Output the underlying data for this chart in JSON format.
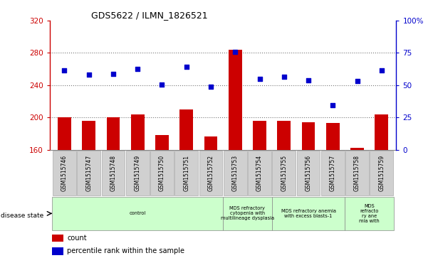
{
  "title": "GDS5622 / ILMN_1826521",
  "samples": [
    "GSM1515746",
    "GSM1515747",
    "GSM1515748",
    "GSM1515749",
    "GSM1515750",
    "GSM1515751",
    "GSM1515752",
    "GSM1515753",
    "GSM1515754",
    "GSM1515755",
    "GSM1515756",
    "GSM1515757",
    "GSM1515758",
    "GSM1515759"
  ],
  "counts": [
    200,
    196,
    200,
    204,
    178,
    210,
    176,
    284,
    196,
    196,
    194,
    193,
    162,
    204
  ],
  "percentile_values": [
    258,
    253,
    254,
    260,
    241,
    263,
    238,
    281,
    248,
    250,
    246,
    215,
    245,
    258
  ],
  "bar_color": "#cc0000",
  "dot_color": "#0000cc",
  "left_ylim": [
    160,
    320
  ],
  "left_yticks": [
    160,
    200,
    240,
    280,
    320
  ],
  "right_ylim": [
    0,
    100
  ],
  "right_yticks": [
    0,
    25,
    50,
    75,
    100
  ],
  "right_yticklabels": [
    "0",
    "25",
    "50",
    "75",
    "100%"
  ],
  "grid_lines": [
    200,
    240,
    280
  ],
  "disease_groups": [
    {
      "label": "control",
      "start": 0,
      "end": 7
    },
    {
      "label": "MDS refractory\ncytopenia with\nmultilineage dysplasia",
      "start": 7,
      "end": 9
    },
    {
      "label": "MDS refractory anemia\nwith excess blasts-1",
      "start": 9,
      "end": 12
    },
    {
      "label": "MDS\nrefracto\nry ane\nmia with",
      "start": 12,
      "end": 14
    }
  ],
  "disease_label": "disease state",
  "group_color": "#ccffcc",
  "tick_bg": "#d0d0d0",
  "tick_border": "#aaaaaa"
}
